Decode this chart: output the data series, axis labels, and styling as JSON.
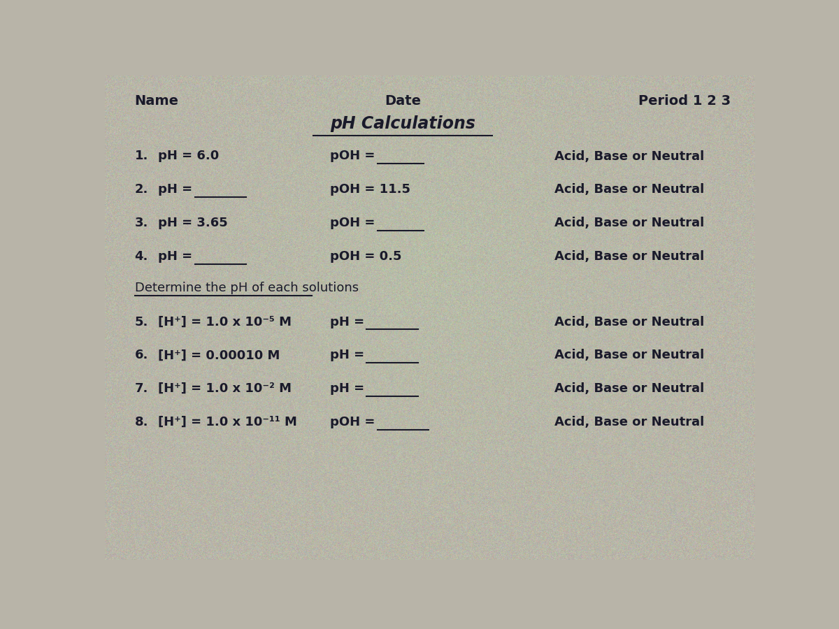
{
  "bg_color": "#b8b4a8",
  "text_color": "#1a1a2a",
  "title": "pH Calculations",
  "header": {
    "name_label": "Name",
    "date_label": "Date",
    "period_label": "Period 1 2 3"
  },
  "problems_part1": [
    {
      "num": "1.",
      "left": "pH = 6.0",
      "left_has_line": false,
      "mid": "pOH =",
      "mid_has_line": true,
      "right": "Acid, Base or Neutral"
    },
    {
      "num": "2.",
      "left": "pH =",
      "left_has_line": true,
      "mid": "pOH = 11.5",
      "mid_has_line": false,
      "right": "Acid, Base or Neutral"
    },
    {
      "num": "3.",
      "left": "pH = 3.65",
      "left_has_line": false,
      "mid": "pOH =",
      "mid_has_line": true,
      "right": "Acid, Base or Neutral"
    },
    {
      "num": "4.",
      "left": "pH =",
      "left_has_line": true,
      "mid": "pOH = 0.5",
      "mid_has_line": false,
      "right": "Acid, Base or Neutral"
    }
  ],
  "section2_label": "Determine the pH of each solutions",
  "problems_part2": [
    {
      "num": "5.",
      "left": "[H⁺] = 1.0 x 10⁻⁵ M",
      "mid": "pH =",
      "mid_has_line": true,
      "right": "Acid, Base or Neutral"
    },
    {
      "num": "6.",
      "left": "[H⁺] = 0.00010 M",
      "mid": "pH =",
      "mid_has_line": true,
      "right": "Acid, Base or Neutral"
    },
    {
      "num": "7.",
      "left": "[H⁺] = 1.0 x 10⁻² M",
      "mid": "pH =",
      "mid_has_line": true,
      "right": "Acid, Base or Neutral"
    },
    {
      "num": "8.",
      "left": "[H⁺] = 1.0 x 10⁻¹¹ M",
      "mid": "pOH =",
      "mid_has_line": true,
      "right": "Acid, Base or Neutral"
    }
  ],
  "noise_seed": 42,
  "noise_alpha": 0.18
}
